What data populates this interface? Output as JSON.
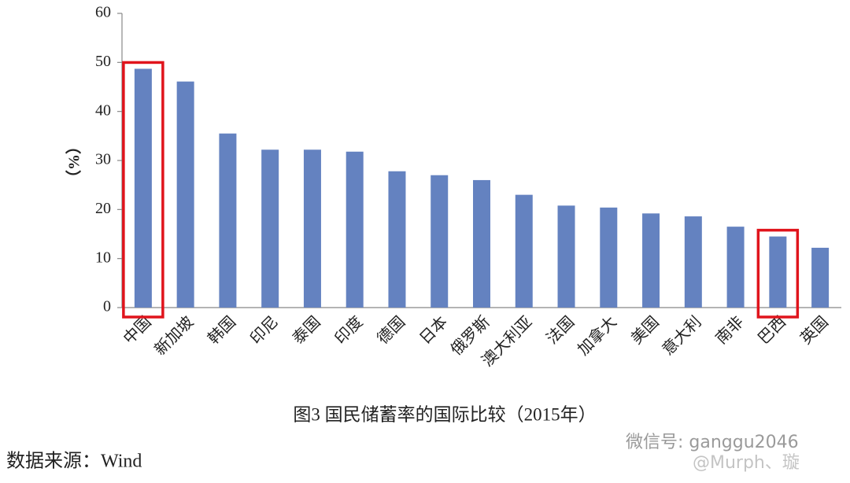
{
  "chart_data": {
    "type": "bar",
    "title": "图3 国民储蓄率的国际比较（2015年）",
    "y_label": "（%）",
    "source": "数据来源：Wind",
    "watermark": [
      "微信号: ganggu2046",
      "@Murph、璇"
    ],
    "categories": [
      "中国",
      "新加坡",
      "韩国",
      "印尼",
      "泰国",
      "印度",
      "德国",
      "日本",
      "俄罗斯",
      "澳大利亚",
      "法国",
      "加拿大",
      "美国",
      "意大利",
      "南非",
      "巴西",
      "英国"
    ],
    "values": [
      48.7,
      46.1,
      35.5,
      32.2,
      32.2,
      31.8,
      27.8,
      27.0,
      26.0,
      23.0,
      20.8,
      20.4,
      19.2,
      18.6,
      16.5,
      14.5,
      12.2
    ],
    "color": "#6482c0",
    "highlight": [
      "中国",
      "巴西"
    ],
    "highlight_color": "#e0141c",
    "ylim": [
      0,
      60
    ],
    "yticks": [
      0,
      10,
      20,
      30,
      40,
      50,
      60
    ],
    "grid": false
  }
}
